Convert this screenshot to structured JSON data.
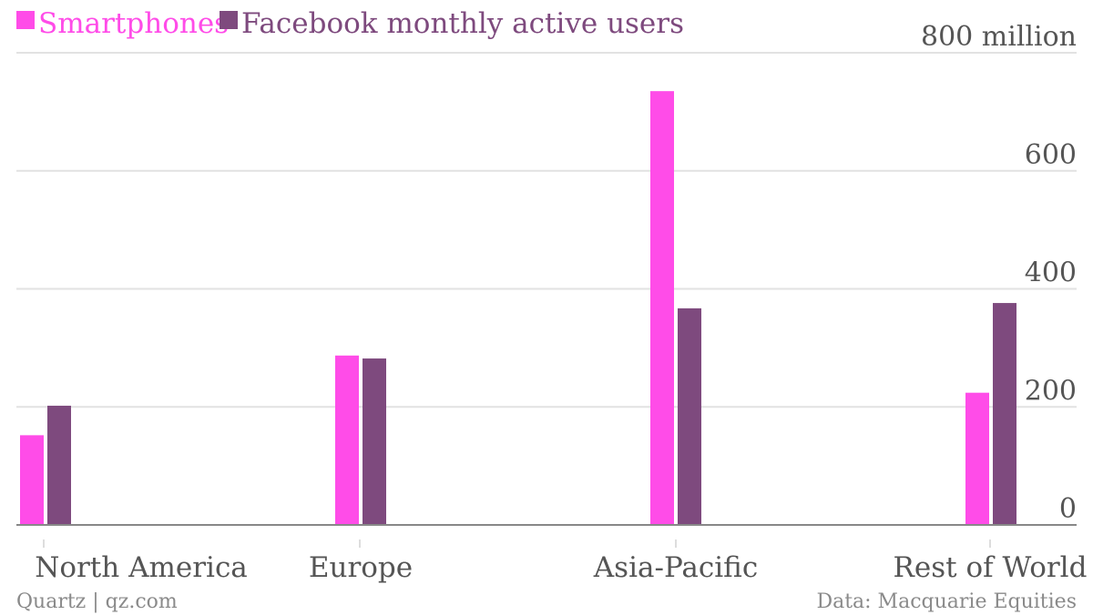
{
  "chart_data": {
    "type": "bar",
    "categories": [
      "North America",
      "Europe",
      "Asia-Pacific",
      "Rest of World"
    ],
    "series": [
      {
        "name": "Smartphones",
        "color": "#ff4ce8",
        "values": [
          152,
          287,
          735,
          224
        ]
      },
      {
        "name": "Facebook monthly active users",
        "color": "#7e4a7e",
        "values": [
          202,
          282,
          367,
          376
        ]
      }
    ],
    "y_ticks": [
      "0",
      "200",
      "400",
      "600",
      "800 million"
    ],
    "y_tick_values": [
      0,
      200,
      400,
      600,
      800
    ],
    "ylim": [
      0,
      800
    ],
    "legend_position": "top-left",
    "grid": true
  },
  "footer": {
    "source_left": "Quartz | qz.com",
    "source_right": "Data: Macquarie Equities"
  }
}
